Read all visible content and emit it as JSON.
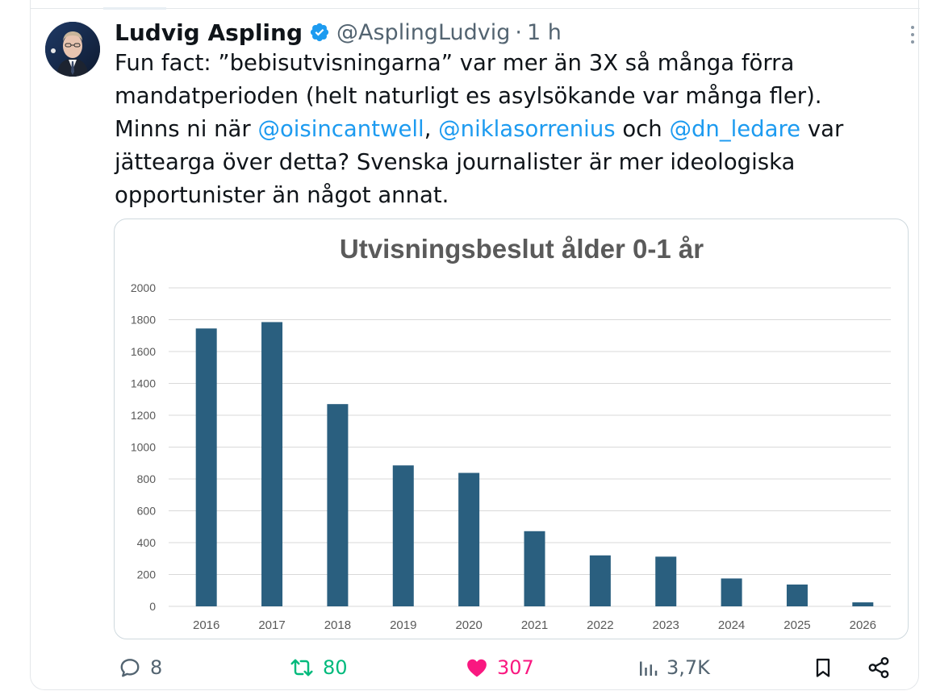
{
  "author": {
    "name": "Ludvig Aspling",
    "handle": "@AsplingLudvig",
    "separator": "·",
    "time": "1 h",
    "verified": true
  },
  "tweet": {
    "lines": [
      [
        {
          "t": "Fun fact: ”bebisutvisningarna” var mer än 3X så många förra",
          "m": false
        }
      ],
      [
        {
          "t": "mandatperioden (helt naturligt es asylsökande var många fler).",
          "m": false
        }
      ],
      [
        {
          "t": "Minns ni när ",
          "m": false
        },
        {
          "t": "@oisincantwell",
          "m": true
        },
        {
          "t": ", ",
          "m": false
        },
        {
          "t": "@niklasorrenius",
          "m": true
        },
        {
          "t": " och ",
          "m": false
        },
        {
          "t": "@dn_ledare",
          "m": true
        },
        {
          "t": " var",
          "m": false
        }
      ],
      [
        {
          "t": "jättearga över detta? Svenska journalister är mer ideologiska",
          "m": false
        }
      ],
      [
        {
          "t": "opportunister än något annat.",
          "m": false
        }
      ]
    ]
  },
  "chart_data": {
    "type": "bar",
    "title": "Utvisningsbeslut ålder 0-1 år",
    "categories": [
      "2016",
      "2017",
      "2018",
      "2019",
      "2020",
      "2021",
      "2022",
      "2023",
      "2024",
      "2025",
      "2026"
    ],
    "values": [
      1745,
      1785,
      1270,
      885,
      838,
      472,
      320,
      312,
      175,
      137,
      25
    ],
    "ylim": [
      0,
      2000
    ],
    "yticks": [
      0,
      200,
      400,
      600,
      800,
      1000,
      1200,
      1400,
      1600,
      1800,
      2000
    ],
    "grid": true,
    "bar_color": "#2a5f7f"
  },
  "actions": {
    "reply_count": "8",
    "retweet_count": "80",
    "like_count": "307",
    "views_count": "3,7K"
  },
  "colors": {
    "link": "#1d9bf0",
    "retweet": "#00ba7c",
    "like": "#f91880",
    "muted": "#536471"
  }
}
